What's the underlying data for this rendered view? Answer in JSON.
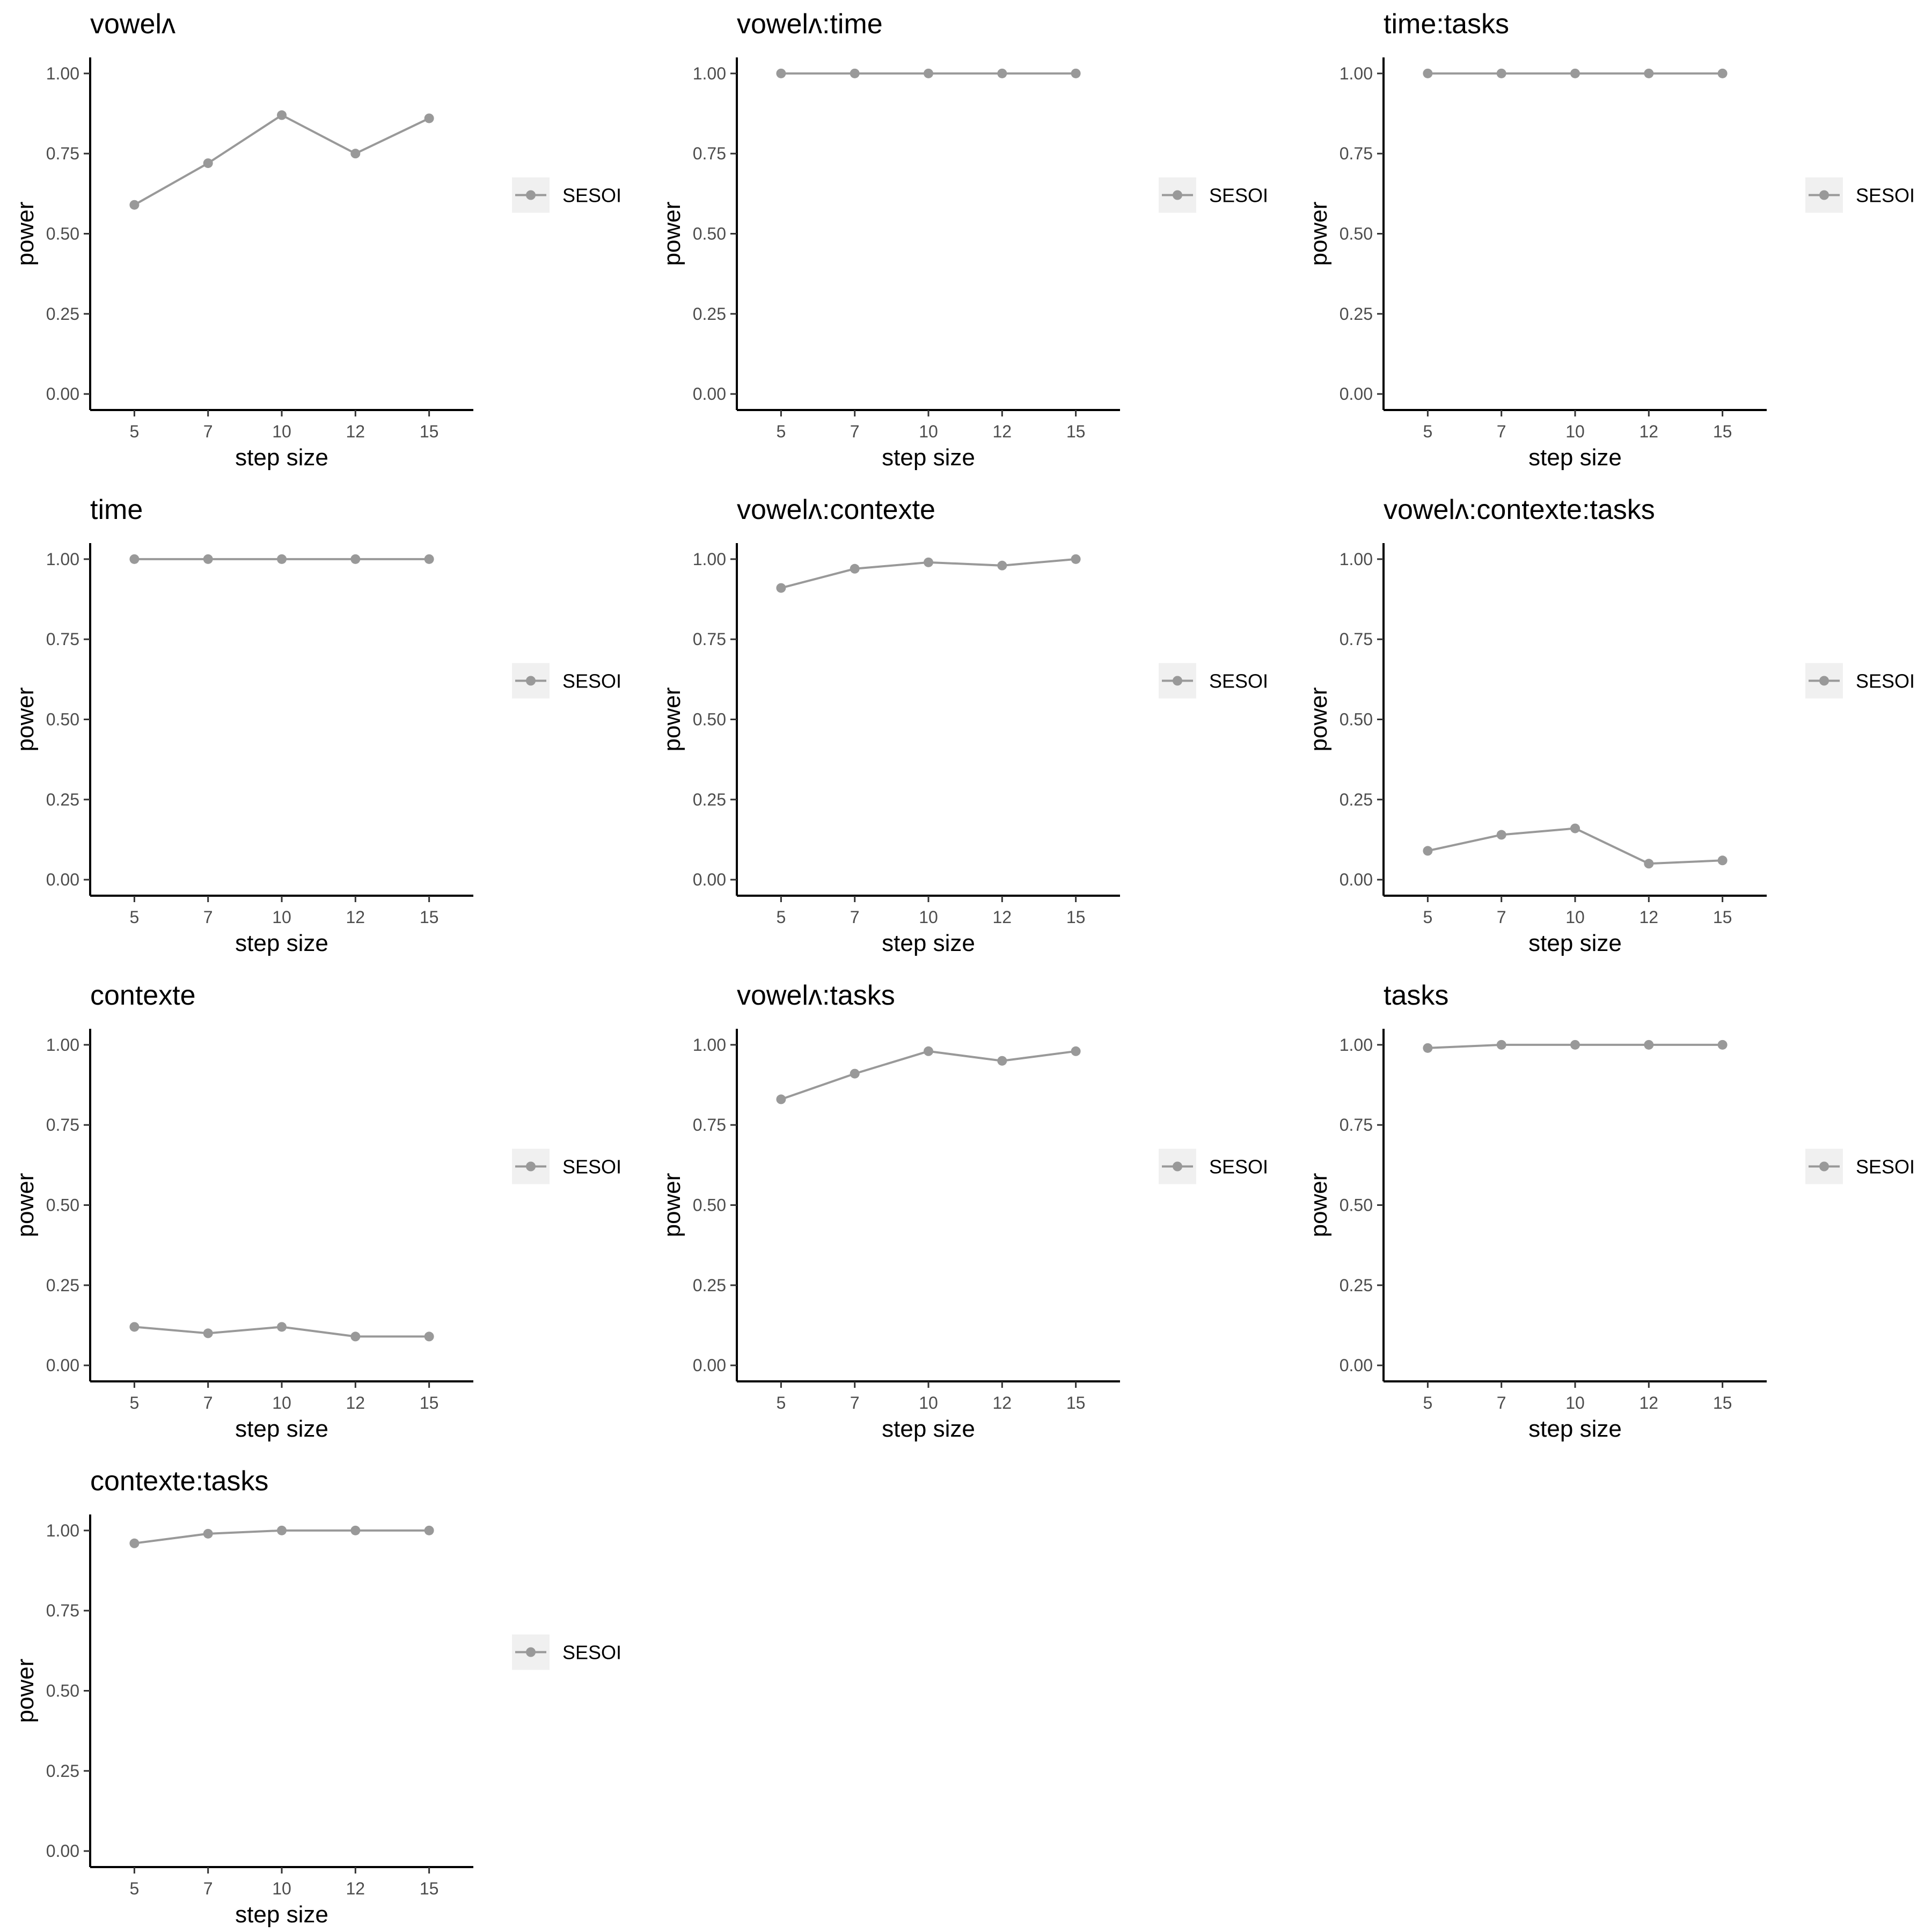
{
  "chart_data": [
    {
      "type": "line",
      "title": "vowelʌ",
      "xlabel": "step size",
      "ylabel": "power",
      "categories": [
        "5",
        "7",
        "10",
        "12",
        "15"
      ],
      "series": [
        {
          "name": "SESOI",
          "values": [
            0.59,
            0.72,
            0.87,
            0.75,
            0.86
          ]
        }
      ],
      "yticks": [
        "0.00",
        "0.25",
        "0.50",
        "0.75",
        "1.00"
      ],
      "ylim": [
        0,
        1
      ],
      "grid": false,
      "legend": "right",
      "color": "#999999"
    },
    {
      "type": "line",
      "title": "vowelʌ:time",
      "xlabel": "step size",
      "ylabel": "power",
      "categories": [
        "5",
        "7",
        "10",
        "12",
        "15"
      ],
      "series": [
        {
          "name": "SESOI",
          "values": [
            1.0,
            1.0,
            1.0,
            1.0,
            1.0
          ]
        }
      ],
      "yticks": [
        "0.00",
        "0.25",
        "0.50",
        "0.75",
        "1.00"
      ],
      "ylim": [
        0,
        1
      ],
      "grid": false,
      "legend": "right",
      "color": "#999999"
    },
    {
      "type": "line",
      "title": "time:tasks",
      "xlabel": "step size",
      "ylabel": "power",
      "categories": [
        "5",
        "7",
        "10",
        "12",
        "15"
      ],
      "series": [
        {
          "name": "SESOI",
          "values": [
            1.0,
            1.0,
            1.0,
            1.0,
            1.0
          ]
        }
      ],
      "yticks": [
        "0.00",
        "0.25",
        "0.50",
        "0.75",
        "1.00"
      ],
      "ylim": [
        0,
        1
      ],
      "grid": false,
      "legend": "right",
      "color": "#999999"
    },
    {
      "type": "line",
      "title": "time",
      "xlabel": "step size",
      "ylabel": "power",
      "categories": [
        "5",
        "7",
        "10",
        "12",
        "15"
      ],
      "series": [
        {
          "name": "SESOI",
          "values": [
            1.0,
            1.0,
            1.0,
            1.0,
            1.0
          ]
        }
      ],
      "yticks": [
        "0.00",
        "0.25",
        "0.50",
        "0.75",
        "1.00"
      ],
      "ylim": [
        0,
        1
      ],
      "grid": false,
      "legend": "right",
      "color": "#999999"
    },
    {
      "type": "line",
      "title": "vowelʌ:contexte",
      "xlabel": "step size",
      "ylabel": "power",
      "categories": [
        "5",
        "7",
        "10",
        "12",
        "15"
      ],
      "series": [
        {
          "name": "SESOI",
          "values": [
            0.91,
            0.97,
            0.99,
            0.98,
            1.0
          ]
        }
      ],
      "yticks": [
        "0.00",
        "0.25",
        "0.50",
        "0.75",
        "1.00"
      ],
      "ylim": [
        0,
        1
      ],
      "grid": false,
      "legend": "right",
      "color": "#999999"
    },
    {
      "type": "line",
      "title": "vowelʌ:contexte:tasks",
      "xlabel": "step size",
      "ylabel": "power",
      "categories": [
        "5",
        "7",
        "10",
        "12",
        "15"
      ],
      "series": [
        {
          "name": "SESOI",
          "values": [
            0.09,
            0.14,
            0.16,
            0.05,
            0.06
          ]
        }
      ],
      "yticks": [
        "0.00",
        "0.25",
        "0.50",
        "0.75",
        "1.00"
      ],
      "ylim": [
        0,
        1
      ],
      "grid": false,
      "legend": "right",
      "color": "#999999"
    },
    {
      "type": "line",
      "title": "contexte",
      "xlabel": "step size",
      "ylabel": "power",
      "categories": [
        "5",
        "7",
        "10",
        "12",
        "15"
      ],
      "series": [
        {
          "name": "SESOI",
          "values": [
            0.12,
            0.1,
            0.12,
            0.09,
            0.09
          ]
        }
      ],
      "yticks": [
        "0.00",
        "0.25",
        "0.50",
        "0.75",
        "1.00"
      ],
      "ylim": [
        0,
        1
      ],
      "grid": false,
      "legend": "right",
      "color": "#999999"
    },
    {
      "type": "line",
      "title": "vowelʌ:tasks",
      "xlabel": "step size",
      "ylabel": "power",
      "categories": [
        "5",
        "7",
        "10",
        "12",
        "15"
      ],
      "series": [
        {
          "name": "SESOI",
          "values": [
            0.83,
            0.91,
            0.98,
            0.95,
            0.98
          ]
        }
      ],
      "yticks": [
        "0.00",
        "0.25",
        "0.50",
        "0.75",
        "1.00"
      ],
      "ylim": [
        0,
        1
      ],
      "grid": false,
      "legend": "right",
      "color": "#999999"
    },
    {
      "type": "line",
      "title": "tasks",
      "xlabel": "step size",
      "ylabel": "power",
      "categories": [
        "5",
        "7",
        "10",
        "12",
        "15"
      ],
      "series": [
        {
          "name": "SESOI",
          "values": [
            0.99,
            1.0,
            1.0,
            1.0,
            1.0
          ]
        }
      ],
      "yticks": [
        "0.00",
        "0.25",
        "0.50",
        "0.75",
        "1.00"
      ],
      "ylim": [
        0,
        1
      ],
      "grid": false,
      "legend": "right",
      "color": "#999999"
    },
    {
      "type": "line",
      "title": "contexte:tasks",
      "xlabel": "step size",
      "ylabel": "power",
      "categories": [
        "5",
        "7",
        "10",
        "12",
        "15"
      ],
      "series": [
        {
          "name": "SESOI",
          "values": [
            0.96,
            0.99,
            1.0,
            1.0,
            1.0
          ]
        }
      ],
      "yticks": [
        "0.00",
        "0.25",
        "0.50",
        "0.75",
        "1.00"
      ],
      "ylim": [
        0,
        1
      ],
      "grid": false,
      "legend": "right",
      "color": "#999999"
    }
  ]
}
